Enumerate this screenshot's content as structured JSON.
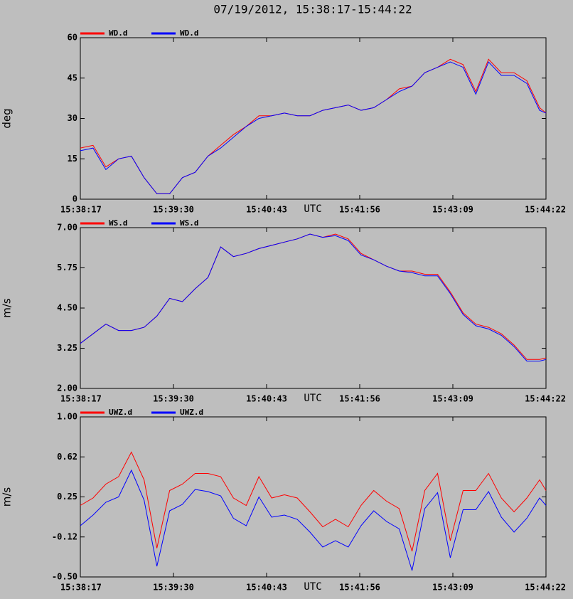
{
  "chart_data": [
    {
      "type": "line",
      "title": "07/19/2012, 15:38:17-15:44:22",
      "ylabel": "deg",
      "xlabel": "UTC",
      "x": [
        "15:38:17",
        "15:38:27",
        "15:38:37",
        "15:38:47",
        "15:38:57",
        "15:39:07",
        "15:39:17",
        "15:39:27",
        "15:39:37",
        "15:39:47",
        "15:39:57",
        "15:40:07",
        "15:40:17",
        "15:40:27",
        "15:40:37",
        "15:40:47",
        "15:40:57",
        "15:41:07",
        "15:41:17",
        "15:41:27",
        "15:41:37",
        "15:41:47",
        "15:41:57",
        "15:42:07",
        "15:42:17",
        "15:42:27",
        "15:42:37",
        "15:42:47",
        "15:42:57",
        "15:43:07",
        "15:43:17",
        "15:43:27",
        "15:43:37",
        "15:43:47",
        "15:43:57",
        "15:44:07",
        "15:44:17",
        "15:44:22"
      ],
      "xlim": [
        "15:38:17",
        "15:44:22"
      ],
      "xticks": [
        "15:38:17",
        "15:39:30",
        "15:40:43",
        "15:41:56",
        "15:43:09",
        "15:44:22"
      ],
      "ylim": [
        0,
        60
      ],
      "yticks": [
        0,
        15,
        30,
        45,
        60
      ],
      "series": [
        {
          "name": "WD.d",
          "color": "#ff0000",
          "values": [
            19,
            20,
            12,
            15,
            16,
            8,
            2,
            2,
            8,
            10,
            16,
            20,
            24,
            27,
            31,
            31,
            32,
            31,
            31,
            33,
            34,
            35,
            33,
            34,
            37,
            41,
            42,
            47,
            49,
            52,
            50,
            40,
            52,
            47,
            47,
            44,
            34,
            32
          ]
        },
        {
          "name": "WD.d",
          "color": "#0000ff",
          "values": [
            18,
            19,
            11,
            15,
            16,
            8,
            2,
            2,
            8,
            10,
            16,
            19,
            23,
            27,
            30,
            31,
            32,
            31,
            31,
            33,
            34,
            35,
            33,
            34,
            37,
            40,
            42,
            47,
            49,
            51,
            49,
            39,
            51,
            46,
            46,
            43,
            33,
            32
          ]
        }
      ]
    },
    {
      "type": "line",
      "ylabel": "m/s",
      "xlabel": "UTC",
      "x": [
        "15:38:17",
        "15:38:27",
        "15:38:37",
        "15:38:47",
        "15:38:57",
        "15:39:07",
        "15:39:17",
        "15:39:27",
        "15:39:37",
        "15:39:47",
        "15:39:57",
        "15:40:07",
        "15:40:17",
        "15:40:27",
        "15:40:37",
        "15:40:47",
        "15:40:57",
        "15:41:07",
        "15:41:17",
        "15:41:27",
        "15:41:37",
        "15:41:47",
        "15:41:57",
        "15:42:07",
        "15:42:17",
        "15:42:27",
        "15:42:37",
        "15:42:47",
        "15:42:57",
        "15:43:07",
        "15:43:17",
        "15:43:27",
        "15:43:37",
        "15:43:47",
        "15:43:57",
        "15:44:07",
        "15:44:17",
        "15:44:22"
      ],
      "xlim": [
        "15:38:17",
        "15:44:22"
      ],
      "xticks": [
        "15:38:17",
        "15:39:30",
        "15:40:43",
        "15:41:56",
        "15:43:09",
        "15:44:22"
      ],
      "ylim": [
        2,
        7
      ],
      "yticks": [
        {
          "value": 2,
          "label": "2.00"
        },
        {
          "value": 3.25,
          "label": "3.25"
        },
        {
          "value": 4.5,
          "label": "4.50"
        },
        {
          "value": 5.75,
          "label": "5.75"
        },
        {
          "value": 7,
          "label": "7.00"
        }
      ],
      "series": [
        {
          "name": "WS.d",
          "color": "#ff0000",
          "values": [
            3.4,
            3.7,
            4.0,
            3.8,
            3.8,
            3.9,
            4.25,
            4.8,
            4.7,
            5.1,
            5.45,
            6.4,
            6.1,
            6.2,
            6.35,
            6.45,
            6.55,
            6.65,
            6.8,
            6.7,
            6.8,
            6.65,
            6.2,
            6.0,
            5.8,
            5.65,
            5.65,
            5.55,
            5.55,
            5.0,
            4.35,
            4.0,
            3.9,
            3.7,
            3.35,
            2.9,
            2.9,
            2.95
          ]
        },
        {
          "name": "WS.d",
          "color": "#0000ff",
          "values": [
            3.4,
            3.7,
            4.0,
            3.8,
            3.8,
            3.9,
            4.25,
            4.8,
            4.7,
            5.1,
            5.45,
            6.4,
            6.1,
            6.2,
            6.35,
            6.45,
            6.55,
            6.65,
            6.8,
            6.7,
            6.75,
            6.6,
            6.15,
            6.0,
            5.8,
            5.65,
            5.6,
            5.5,
            5.5,
            4.95,
            4.3,
            3.95,
            3.85,
            3.65,
            3.3,
            2.85,
            2.85,
            2.9
          ]
        }
      ]
    },
    {
      "type": "line",
      "ylabel": "m/s",
      "xlabel": "UTC",
      "x": [
        "15:38:17",
        "15:38:27",
        "15:38:37",
        "15:38:47",
        "15:38:57",
        "15:39:07",
        "15:39:17",
        "15:39:27",
        "15:39:37",
        "15:39:47",
        "15:39:57",
        "15:40:07",
        "15:40:17",
        "15:40:27",
        "15:40:37",
        "15:40:47",
        "15:40:57",
        "15:41:07",
        "15:41:17",
        "15:41:27",
        "15:41:37",
        "15:41:47",
        "15:41:57",
        "15:42:07",
        "15:42:17",
        "15:42:27",
        "15:42:37",
        "15:42:47",
        "15:42:57",
        "15:43:07",
        "15:43:17",
        "15:43:27",
        "15:43:37",
        "15:43:47",
        "15:43:57",
        "15:44:07",
        "15:44:17",
        "15:44:22"
      ],
      "xlim": [
        "15:38:17",
        "15:44:22"
      ],
      "xticks": [
        "15:38:17",
        "15:39:30",
        "15:40:43",
        "15:41:56",
        "15:43:09",
        "15:44:22"
      ],
      "ylim": [
        -0.5,
        1
      ],
      "yticks": [
        {
          "value": -0.5,
          "label": "-0.50"
        },
        {
          "value": -0.125,
          "label": "-0.12"
        },
        {
          "value": 0.25,
          "label": "0.25"
        },
        {
          "value": 0.625,
          "label": "0.62"
        },
        {
          "value": 1,
          "label": "1.00"
        }
      ],
      "series": [
        {
          "name": "UWZ.d",
          "color": "#ff0000",
          "values": [
            0.17,
            0.24,
            0.37,
            0.44,
            0.67,
            0.41,
            -0.23,
            0.31,
            0.37,
            0.47,
            0.47,
            0.44,
            0.24,
            0.17,
            0.44,
            0.24,
            0.27,
            0.24,
            0.11,
            -0.03,
            0.04,
            -0.03,
            0.17,
            0.31,
            0.21,
            0.14,
            -0.26,
            0.31,
            0.47,
            -0.16,
            0.31,
            0.31,
            0.47,
            0.24,
            0.11,
            0.24,
            0.41,
            0.31
          ]
        },
        {
          "name": "UWZ.d",
          "color": "#0000ff",
          "values": [
            -0.02,
            0.08,
            0.2,
            0.25,
            0.5,
            0.22,
            -0.4,
            0.12,
            0.18,
            0.32,
            0.3,
            0.26,
            0.05,
            -0.02,
            0.25,
            0.06,
            0.08,
            0.04,
            -0.08,
            -0.22,
            -0.16,
            -0.22,
            -0.02,
            0.12,
            0.02,
            -0.05,
            -0.44,
            0.14,
            0.29,
            -0.32,
            0.13,
            0.13,
            0.3,
            0.06,
            -0.08,
            0.05,
            0.24,
            0.17
          ]
        }
      ]
    }
  ]
}
